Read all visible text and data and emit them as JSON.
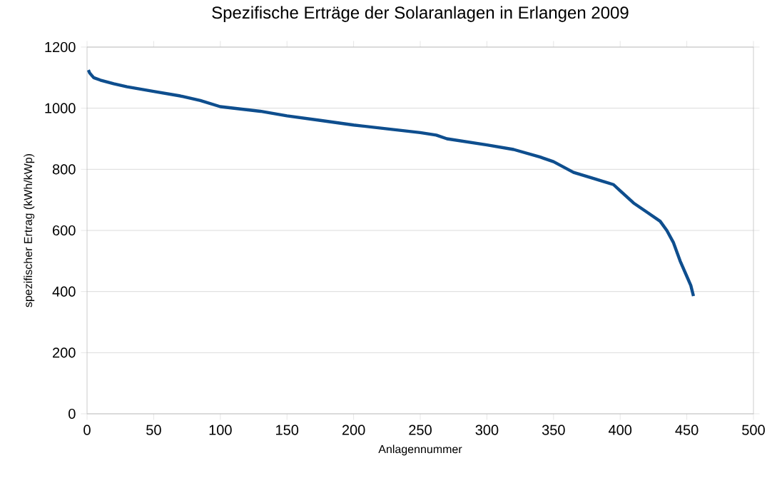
{
  "chart_data": {
    "type": "line",
    "title": "Spezifische Erträge der Solaranlagen in Erlangen 2009",
    "xlabel": "Anlagennummer",
    "ylabel": "spezifischer Ertrag (kWh/kWp)",
    "x": [
      1,
      2,
      5,
      10,
      20,
      30,
      50,
      70,
      85,
      100,
      130,
      150,
      175,
      200,
      230,
      250,
      262,
      270,
      285,
      300,
      320,
      340,
      350,
      365,
      380,
      395,
      400,
      410,
      420,
      430,
      435,
      440,
      445,
      450,
      453,
      455
    ],
    "series": [
      {
        "color": "#0e4e8e",
        "values": [
          1125,
          1115,
          1100,
          1092,
          1080,
          1070,
          1055,
          1040,
          1025,
          1005,
          990,
          975,
          960,
          945,
          930,
          920,
          912,
          900,
          890,
          880,
          865,
          840,
          825,
          790,
          770,
          750,
          730,
          690,
          660,
          630,
          600,
          560,
          500,
          450,
          420,
          385
        ]
      }
    ],
    "xlim": [
      0,
      500
    ],
    "ylim": [
      0,
      1200
    ],
    "xticks": [
      0,
      50,
      100,
      150,
      200,
      250,
      300,
      350,
      400,
      450,
      500
    ],
    "yticks": [
      0,
      200,
      400,
      600,
      800,
      1000,
      1200
    ],
    "grid": "y",
    "marker": "none",
    "line_style": "solid"
  }
}
